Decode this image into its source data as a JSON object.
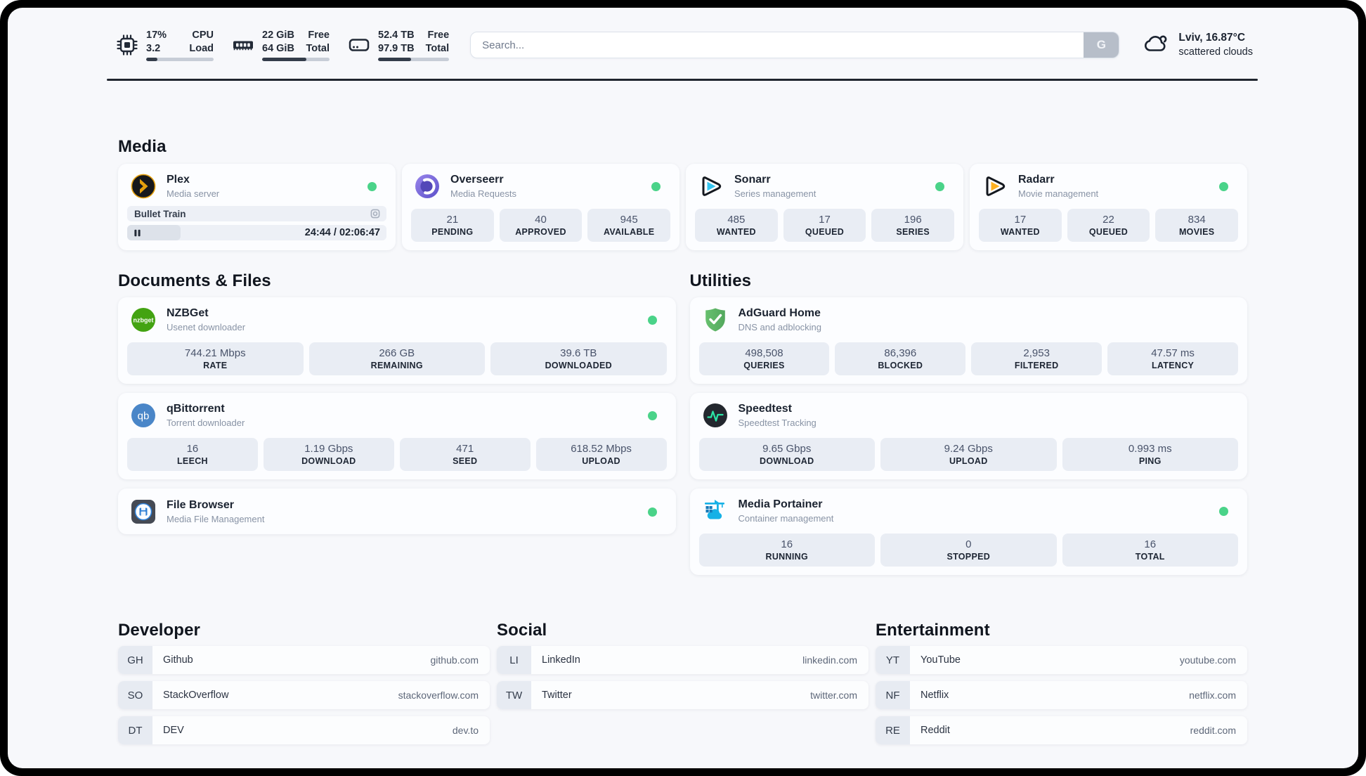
{
  "topbar": {
    "cpu": {
      "primary": "17%",
      "secondary": "3.2",
      "label_primary": "CPU",
      "label_secondary": "Load",
      "progress": "17%"
    },
    "memory": {
      "primary": "22 GiB",
      "secondary": "64 GiB",
      "label_primary": "Free",
      "label_secondary": "Total",
      "progress": "66%"
    },
    "disk": {
      "primary": "52.4 TB",
      "secondary": "97.9 TB",
      "label_primary": "Free",
      "label_secondary": "Total",
      "progress": "46%"
    },
    "search": {
      "placeholder": "Search...",
      "button_label": "G"
    },
    "weather": {
      "location_temperature": "Lviv, 16.87°C",
      "condition": "scattered clouds"
    }
  },
  "colors": {
    "status_online": "#4ad389",
    "topbar_icon": "#222a37",
    "plex_gold": "#e5a00d",
    "sonarr_cyan": "#35c5f0",
    "radarr_amber": "#ffb020",
    "nzbget_green": "#43a312",
    "qbittorrent_blue": "#4a86c8",
    "adguard_green": "#5fba68",
    "speedtest_green": "#2be3a4",
    "portainer_blue": "#15b1e6"
  },
  "sections": {
    "media": {
      "title": "Media",
      "apps": [
        {
          "name": "Plex",
          "description": "Media server",
          "status": "online",
          "now_playing": {
            "title": "Bullet Train",
            "time": "24:44 / 02:06:47",
            "state": "paused"
          }
        },
        {
          "name": "Overseerr",
          "description": "Media Requests",
          "status": "online",
          "stats": [
            {
              "value": "21",
              "label": "PENDING"
            },
            {
              "value": "40",
              "label": "APPROVED"
            },
            {
              "value": "945",
              "label": "AVAILABLE"
            }
          ]
        },
        {
          "name": "Sonarr",
          "description": "Series management",
          "status": "online",
          "stats": [
            {
              "value": "485",
              "label": "WANTED"
            },
            {
              "value": "17",
              "label": "QUEUED"
            },
            {
              "value": "196",
              "label": "SERIES"
            }
          ]
        },
        {
          "name": "Radarr",
          "description": "Movie management",
          "status": "online",
          "stats": [
            {
              "value": "17",
              "label": "WANTED"
            },
            {
              "value": "22",
              "label": "QUEUED"
            },
            {
              "value": "834",
              "label": "MOVIES"
            }
          ]
        }
      ]
    },
    "documents": {
      "title": "Documents & Files",
      "apps": [
        {
          "name": "NZBGet",
          "description": "Usenet downloader",
          "status": "online",
          "stats": [
            {
              "value": "744.21 Mbps",
              "label": "RATE"
            },
            {
              "value": "266 GB",
              "label": "REMAINING"
            },
            {
              "value": "39.6 TB",
              "label": "DOWNLOADED"
            }
          ]
        },
        {
          "name": "qBittorrent",
          "description": "Torrent downloader",
          "status": "online",
          "stats": [
            {
              "value": "16",
              "label": "LEECH"
            },
            {
              "value": "1.19 Gbps",
              "label": "DOWNLOAD"
            },
            {
              "value": "471",
              "label": "SEED"
            },
            {
              "value": "618.52 Mbps",
              "label": "UPLOAD"
            }
          ]
        },
        {
          "name": "File Browser",
          "description": "Media File Management",
          "status": "online"
        }
      ]
    },
    "utilities": {
      "title": "Utilities",
      "apps": [
        {
          "name": "AdGuard Home",
          "description": "DNS and adblocking",
          "stats": [
            {
              "value": "498,508",
              "label": "QUERIES"
            },
            {
              "value": "86,396",
              "label": "BLOCKED"
            },
            {
              "value": "2,953",
              "label": "FILTERED"
            },
            {
              "value": "47.57 ms",
              "label": "LATENCY"
            }
          ]
        },
        {
          "name": "Speedtest",
          "description": "Speedtest Tracking",
          "stats": [
            {
              "value": "9.65 Gbps",
              "label": "DOWNLOAD"
            },
            {
              "value": "9.24 Gbps",
              "label": "UPLOAD"
            },
            {
              "value": "0.993 ms",
              "label": "PING"
            }
          ]
        },
        {
          "name": "Media Portainer",
          "description": "Container management",
          "status": "online",
          "stats": [
            {
              "value": "16",
              "label": "RUNNING"
            },
            {
              "value": "0",
              "label": "STOPPED"
            },
            {
              "value": "16",
              "label": "TOTAL"
            }
          ]
        }
      ]
    },
    "bookmarks": [
      {
        "title": "Developer",
        "items": [
          {
            "abbr": "GH",
            "name": "Github",
            "url": "github.com"
          },
          {
            "abbr": "SO",
            "name": "StackOverflow",
            "url": "stackoverflow.com"
          },
          {
            "abbr": "DT",
            "name": "DEV",
            "url": "dev.to"
          }
        ]
      },
      {
        "title": "Social",
        "items": [
          {
            "abbr": "LI",
            "name": "LinkedIn",
            "url": "linkedin.com"
          },
          {
            "abbr": "TW",
            "name": "Twitter",
            "url": "twitter.com"
          }
        ]
      },
      {
        "title": "Entertainment",
        "items": [
          {
            "abbr": "YT",
            "name": "YouTube",
            "url": "youtube.com"
          },
          {
            "abbr": "NF",
            "name": "Netflix",
            "url": "netflix.com"
          },
          {
            "abbr": "RE",
            "name": "Reddit",
            "url": "reddit.com"
          }
        ]
      }
    ]
  }
}
